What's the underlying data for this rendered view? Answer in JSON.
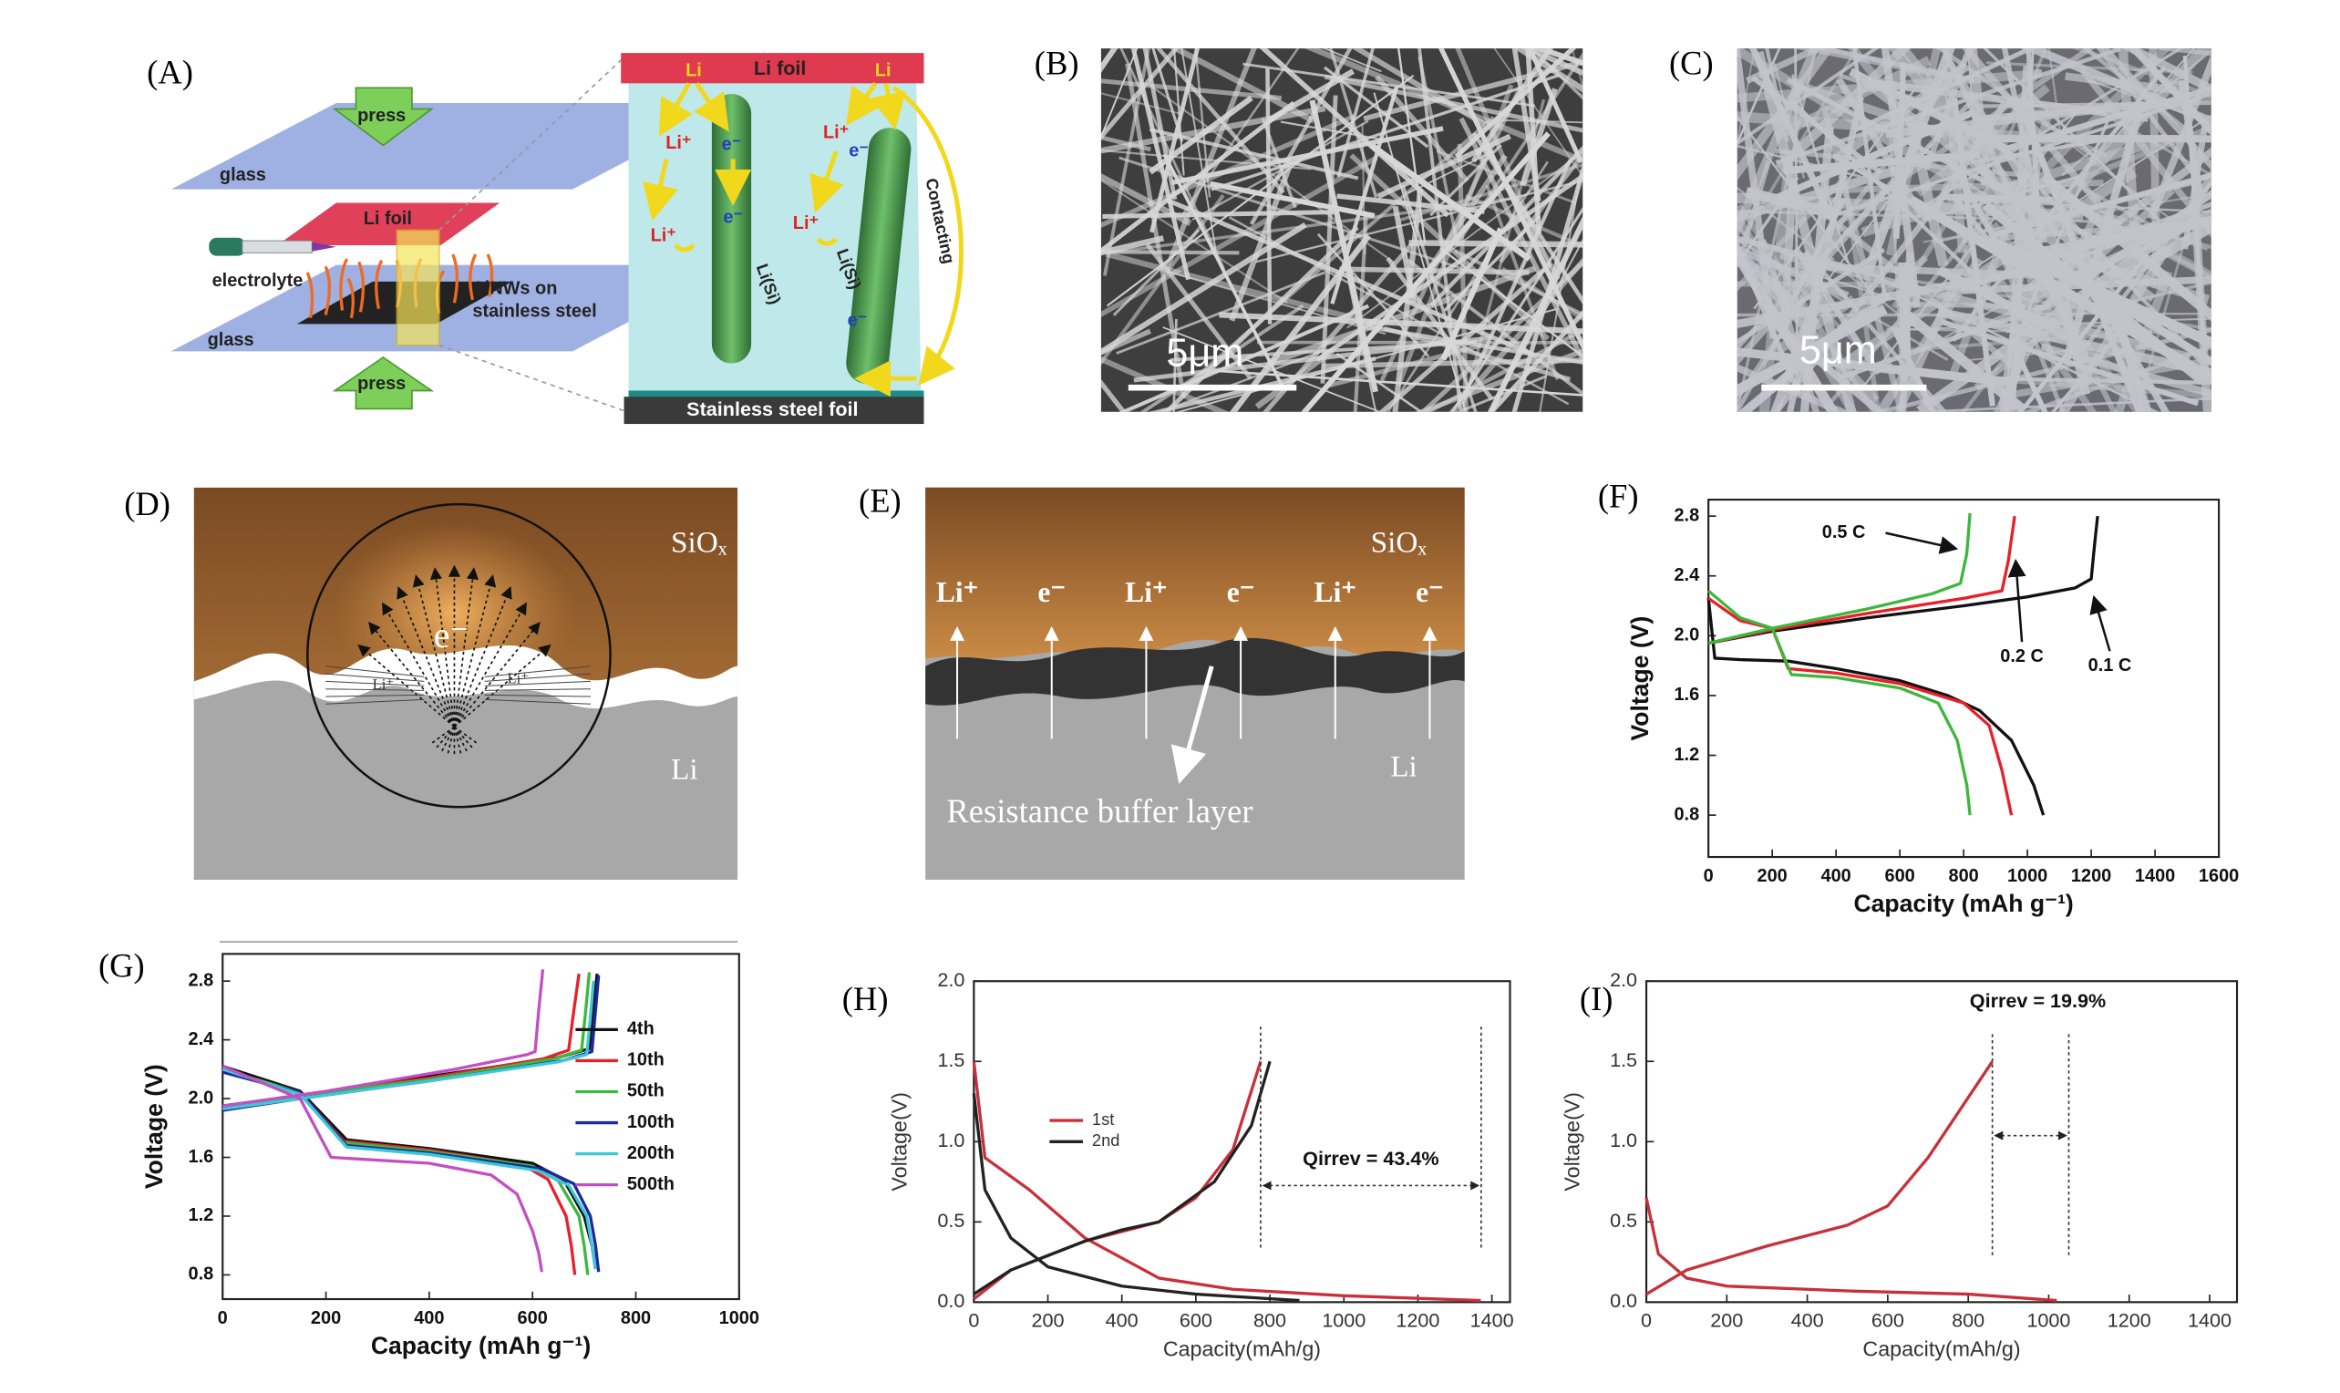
{
  "panel_labels": [
    "(A)",
    "(B)",
    "(C)",
    "(D)",
    "(E)",
    "(F)",
    "(G)",
    "(H)",
    "(I)"
  ],
  "panels": {
    "A": {
      "press": [
        "press",
        "press"
      ],
      "glass": [
        "glass",
        "glass"
      ],
      "li_foil": [
        "Li foil",
        "Li foil"
      ],
      "electrolyte": "electrolyte",
      "sinws": [
        "SiNWs on",
        "stainless steel"
      ],
      "stainless_foil": "Stainless steel foil",
      "li": [
        "Li",
        "Li"
      ],
      "li_ion": [
        "Li⁺",
        "Li⁺",
        "Li⁺",
        "Li⁺"
      ],
      "electron": [
        "e⁻",
        "e⁻",
        "e⁻",
        "e⁻"
      ],
      "li_si": [
        "Li(Si)",
        "Li(Si)"
      ],
      "contacting": "Contacting"
    },
    "B": {
      "scale": "5μm"
    },
    "C": {
      "scale": "5μm"
    },
    "D": {
      "oxide": "SiOₓ",
      "electron": "e⁻",
      "li_ion": [
        "Li⁺",
        "Li⁺"
      ],
      "metal": "Li"
    },
    "E": {
      "oxide": "SiOₓ",
      "carriers": [
        "Li⁺",
        "e⁻",
        "Li⁺",
        "e⁻",
        "Li⁺",
        "e⁻"
      ],
      "buffer": "Resistance buffer layer",
      "metal": "Li"
    }
  },
  "chart_data": [
    {
      "type": "line",
      "xlabel": "Capacity (mAh g⁻¹)",
      "ylabel": "Voltage (V)",
      "xlim": [
        0,
        1600
      ],
      "ylim": [
        0.52,
        2.91
      ],
      "xticks": [
        0,
        200,
        400,
        600,
        800,
        1000,
        1200,
        1400,
        1600
      ],
      "yticks": [
        0.8,
        1.2,
        1.6,
        {
          "value": 2,
          "label": "2.0"
        },
        2.4,
        2.8
      ],
      "series": [
        {
          "name": "0.1 C",
          "color": "#111111",
          "x": [
            0,
            20,
            100,
            250,
            400,
            600,
            750,
            850,
            950,
            1020,
            1050,
            null,
            0,
            200,
            500,
            800,
            1000,
            1150,
            1200,
            1210,
            1220
          ],
          "values": [
            2.25,
            1.85,
            1.84,
            1.83,
            1.78,
            1.7,
            1.6,
            1.5,
            1.3,
            1.0,
            0.8,
            null,
            1.95,
            2.03,
            2.12,
            2.2,
            2.26,
            2.32,
            2.38,
            2.6,
            2.8
          ]
        },
        {
          "name": "0.2 C",
          "color": "#e8202a",
          "x": [
            0,
            100,
            200,
            250,
            400,
            600,
            800,
            880,
            920,
            950,
            null,
            0,
            200,
            500,
            800,
            920,
            940,
            960
          ],
          "values": [
            2.25,
            2.1,
            2.05,
            1.78,
            1.75,
            1.68,
            1.55,
            1.4,
            1.1,
            0.8,
            null,
            1.95,
            2.04,
            2.15,
            2.25,
            2.3,
            2.5,
            2.8
          ]
        },
        {
          "name": "0.5 C",
          "color": "#3cb83c",
          "x": [
            0,
            100,
            200,
            260,
            400,
            600,
            720,
            780,
            810,
            820,
            null,
            0,
            200,
            500,
            700,
            790,
            810,
            820
          ],
          "values": [
            2.3,
            2.12,
            2.05,
            1.74,
            1.72,
            1.65,
            1.55,
            1.3,
            1.0,
            0.8,
            null,
            1.95,
            2.05,
            2.18,
            2.28,
            2.35,
            2.55,
            2.82
          ]
        }
      ]
    },
    {
      "type": "line",
      "xlabel": "Capacity (mAh g⁻¹)",
      "ylabel": "Voltage (V)",
      "xlim": [
        0,
        1000
      ],
      "ylim": [
        0.635,
        2.985
      ],
      "xticks": [
        0,
        200,
        400,
        600,
        800,
        1000
      ],
      "yticks": [
        0.8,
        1.2,
        1.6,
        {
          "value": 2,
          "label": "2.0"
        },
        2.4,
        2.8
      ],
      "legend": "center right",
      "series": [
        {
          "name": "4th",
          "color": "#111111",
          "x": [
            0,
            150,
            240,
            400,
            600,
            660,
            700,
            715,
            722,
            null,
            0,
            150,
            400,
            650,
            710,
            718,
            725
          ],
          "values": [
            2.22,
            2.05,
            1.72,
            1.66,
            1.56,
            1.45,
            1.2,
            1.0,
            0.84,
            null,
            1.95,
            2.02,
            2.15,
            2.28,
            2.34,
            2.6,
            2.85
          ]
        },
        {
          "name": "10th",
          "color": "#e8202a",
          "x": [
            0,
            150,
            235,
            400,
            580,
            630,
            665,
            675,
            682,
            null,
            0,
            150,
            400,
            620,
            670,
            680,
            690
          ],
          "values": [
            2.2,
            2.04,
            1.71,
            1.65,
            1.55,
            1.45,
            1.2,
            1.0,
            0.8,
            null,
            1.95,
            2.02,
            2.14,
            2.27,
            2.33,
            2.6,
            2.85
          ]
        },
        {
          "name": "50th",
          "color": "#3cb83c",
          "x": [
            0,
            150,
            235,
            400,
            600,
            650,
            690,
            700,
            707,
            null,
            0,
            150,
            400,
            640,
            695,
            703,
            710
          ],
          "values": [
            2.2,
            2.04,
            1.7,
            1.64,
            1.54,
            1.44,
            1.2,
            1.0,
            0.8,
            null,
            1.95,
            2.02,
            2.13,
            2.27,
            2.33,
            2.6,
            2.86
          ]
        },
        {
          "name": "100th",
          "color": "#1a2a9c",
          "x": [
            0,
            150,
            240,
            400,
            620,
            680,
            712,
            722,
            728,
            null,
            0,
            150,
            400,
            660,
            715,
            722,
            728
          ],
          "values": [
            2.18,
            2.04,
            1.68,
            1.63,
            1.52,
            1.42,
            1.2,
            1.0,
            0.82,
            null,
            1.92,
            2.0,
            2.12,
            2.26,
            2.32,
            2.6,
            2.84
          ]
        },
        {
          "name": "200th",
          "color": "#3fc6d8",
          "x": [
            0,
            150,
            240,
            400,
            610,
            670,
            705,
            715,
            722,
            null,
            0,
            150,
            400,
            650,
            705,
            712,
            718
          ],
          "values": [
            2.2,
            2.03,
            1.67,
            1.62,
            1.51,
            1.41,
            1.2,
            1.0,
            0.84,
            null,
            1.93,
            2.0,
            2.12,
            2.25,
            2.3,
            2.55,
            2.8
          ]
        },
        {
          "name": "500th",
          "color": "#c24fc4",
          "x": [
            0,
            150,
            210,
            400,
            520,
            570,
            600,
            612,
            618,
            null,
            0,
            200,
            450,
            590,
            605,
            612,
            620
          ],
          "values": [
            2.22,
            2.0,
            1.6,
            1.56,
            1.48,
            1.35,
            1.1,
            0.95,
            0.82,
            null,
            1.95,
            2.05,
            2.2,
            2.3,
            2.32,
            2.6,
            2.88
          ]
        }
      ]
    },
    {
      "type": "line",
      "xlabel": "Capacity(mAh/g)",
      "ylabel": "Voltage(V)",
      "xlim": [
        0,
        1449
      ],
      "ylim": [
        0,
        2.0
      ],
      "xticks": [
        0,
        200,
        400,
        600,
        800,
        1000,
        1200,
        1400
      ],
      "yticks": [
        {
          "value": 0,
          "label": "0.0"
        },
        0.5,
        {
          "value": 1,
          "label": "1.0"
        },
        1.5,
        {
          "value": 2,
          "label": "2.0"
        }
      ],
      "legend": "center left",
      "annotation": "Qirrev =  43.4%",
      "markers": [
        775,
        1371
      ],
      "series": [
        {
          "name": "1st",
          "color": "#c8303a",
          "x": [
            0,
            30,
            150,
            300,
            500,
            700,
            1000,
            1370,
            null,
            0,
            100,
            300,
            500,
            600,
            700,
            775
          ],
          "values": [
            1.5,
            0.9,
            0.7,
            0.4,
            0.15,
            0.08,
            0.04,
            0.01,
            null,
            0.02,
            0.2,
            0.38,
            0.5,
            0.65,
            0.95,
            1.5
          ]
        },
        {
          "name": "2nd",
          "color": "#222222",
          "x": [
            0,
            30,
            100,
            200,
            400,
            600,
            880,
            null,
            0,
            100,
            300,
            400,
            500,
            650,
            750,
            800
          ],
          "values": [
            1.3,
            0.7,
            0.4,
            0.22,
            0.1,
            0.05,
            0.01,
            null,
            0.05,
            0.2,
            0.38,
            0.45,
            0.5,
            0.75,
            1.1,
            1.5
          ]
        }
      ]
    },
    {
      "type": "line",
      "xlabel": "Capacity(mAh/g)",
      "ylabel": "Voltage(V)",
      "xlim": [
        0,
        1468
      ],
      "ylim": [
        0,
        2.0
      ],
      "xticks": [
        0,
        200,
        400,
        600,
        800,
        1000,
        1200,
        1400
      ],
      "yticks": [
        {
          "value": 0,
          "label": "0.0"
        },
        0.5,
        {
          "value": 1,
          "label": "1.0"
        },
        1.5,
        {
          "value": 2,
          "label": "2.0"
        }
      ],
      "annotation": "Qirrev =  19.9%",
      "markers": [
        860,
        1050
      ],
      "series": [
        {
          "color": "#c8303a",
          "x": [
            0,
            30,
            100,
            200,
            500,
            800,
            1020,
            null,
            0,
            100,
            300,
            500,
            600,
            700,
            860
          ],
          "values": [
            0.65,
            0.3,
            0.15,
            0.1,
            0.07,
            0.05,
            0.01,
            null,
            0.05,
            0.2,
            0.35,
            0.48,
            0.6,
            0.9,
            1.5
          ]
        }
      ]
    }
  ]
}
